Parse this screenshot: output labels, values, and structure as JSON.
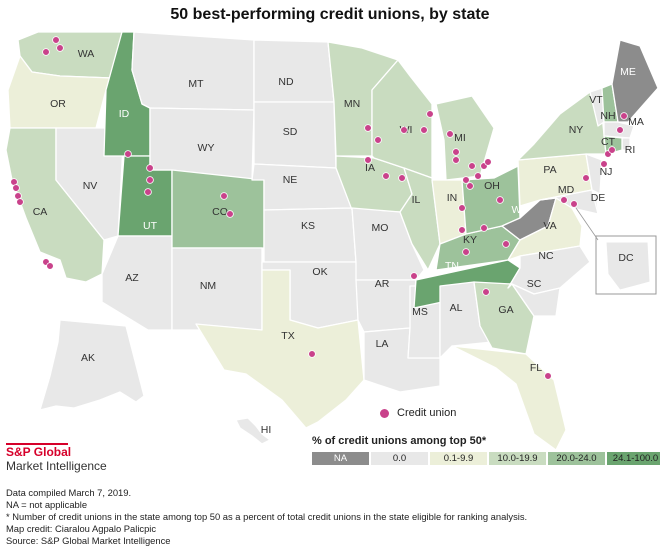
{
  "title": "50 best-performing credit unions, by state",
  "colors": {
    "na": "#8c8c8c",
    "bin0": "#e8e8e8",
    "bin1": "#ecefd9",
    "bin2": "#c9dcc0",
    "bin3": "#9dc29b",
    "bin4": "#6aa46f",
    "dot": "#c9428b",
    "water_inset_border": "#999999"
  },
  "legend": {
    "dot_label": "Credit union",
    "scale_title": "% of credit unions among top 50*",
    "bins": [
      {
        "label": "NA",
        "color": "#8c8c8c"
      },
      {
        "label": "0.0",
        "color": "#e8e8e8"
      },
      {
        "label": "0.1-9.9",
        "color": "#ecefd9"
      },
      {
        "label": "10.0-19.9",
        "color": "#c9dcc0"
      },
      {
        "label": "20.0-24.0",
        "color": "#9dc29b"
      },
      {
        "label": "24.1-100.0",
        "color": "#6aa46f"
      }
    ]
  },
  "brand": {
    "name": "S&P Global",
    "sub": "Market Intelligence"
  },
  "notes": [
    "Data compiled March 7, 2019.",
    "NA = not applicable",
    "* Number of credit unions in the state among top 50 as a percent of total credit unions in the state eligible for ranking analysis.",
    "Map credit: Ciaralou Agpalo Palicpic",
    "Source: S&P Global Market Intelligence"
  ],
  "states": [
    {
      "abbr": "WA",
      "bin": 2
    },
    {
      "abbr": "OR",
      "bin": 1
    },
    {
      "abbr": "CA",
      "bin": 2
    },
    {
      "abbr": "ID",
      "bin": 4
    },
    {
      "abbr": "NV",
      "bin": 0
    },
    {
      "abbr": "UT",
      "bin": 4
    },
    {
      "abbr": "AZ",
      "bin": 0
    },
    {
      "abbr": "MT",
      "bin": 0
    },
    {
      "abbr": "WY",
      "bin": 0
    },
    {
      "abbr": "CO",
      "bin": 3
    },
    {
      "abbr": "NM",
      "bin": 0
    },
    {
      "abbr": "ND",
      "bin": 0
    },
    {
      "abbr": "SD",
      "bin": 0
    },
    {
      "abbr": "NE",
      "bin": 0
    },
    {
      "abbr": "KS",
      "bin": 0
    },
    {
      "abbr": "OK",
      "bin": 0
    },
    {
      "abbr": "TX",
      "bin": 1
    },
    {
      "abbr": "MN",
      "bin": 2
    },
    {
      "abbr": "IA",
      "bin": 2
    },
    {
      "abbr": "MO",
      "bin": 0
    },
    {
      "abbr": "AR",
      "bin": 0
    },
    {
      "abbr": "LA",
      "bin": 0
    },
    {
      "abbr": "WI",
      "bin": 2
    },
    {
      "abbr": "IL",
      "bin": 2
    },
    {
      "abbr": "MS",
      "bin": 0
    },
    {
      "abbr": "MI",
      "bin": 2
    },
    {
      "abbr": "IN",
      "bin": 1
    },
    {
      "abbr": "KY",
      "bin": 3
    },
    {
      "abbr": "TN",
      "bin": 4
    },
    {
      "abbr": "AL",
      "bin": 0
    },
    {
      "abbr": "GA",
      "bin": 2
    },
    {
      "abbr": "FL",
      "bin": 1
    },
    {
      "abbr": "OH",
      "bin": 3
    },
    {
      "abbr": "WV",
      "bin": -1
    },
    {
      "abbr": "VA",
      "bin": 1
    },
    {
      "abbr": "NC",
      "bin": 0
    },
    {
      "abbr": "SC",
      "bin": 0
    },
    {
      "abbr": "PA",
      "bin": 1
    },
    {
      "abbr": "NY",
      "bin": 2
    },
    {
      "abbr": "VT",
      "bin": 0
    },
    {
      "abbr": "NH",
      "bin": 3
    },
    {
      "abbr": "ME",
      "bin": -1
    },
    {
      "abbr": "MA",
      "bin": 0
    },
    {
      "abbr": "RI",
      "bin": 0
    },
    {
      "abbr": "CT",
      "bin": 3
    },
    {
      "abbr": "NJ",
      "bin": 0
    },
    {
      "abbr": "DE",
      "bin": 0
    },
    {
      "abbr": "MD",
      "bin": 0
    },
    {
      "abbr": "DC",
      "bin": 0
    },
    {
      "abbr": "AK",
      "bin": 0
    },
    {
      "abbr": "HI",
      "bin": 0
    }
  ]
}
